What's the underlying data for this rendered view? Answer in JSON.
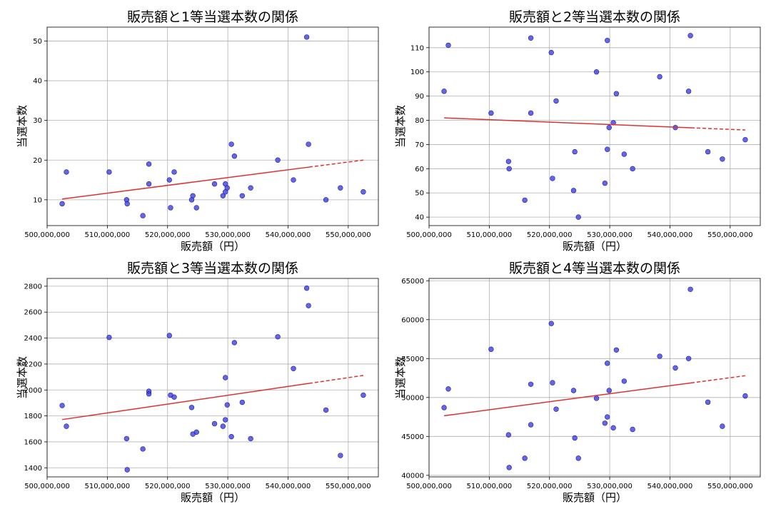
{
  "chart_data": [
    {
      "type": "scatter",
      "title": "販売額と1等当選本数の関係",
      "xlabel": "販売額（円）",
      "ylabel": "当選本数",
      "xlim": [
        500000000,
        555000000
      ],
      "ylim": [
        3.5,
        53.5
      ],
      "xticks": [
        500000000,
        510000000,
        520000000,
        530000000,
        540000000,
        550000000
      ],
      "xtick_labels": [
        "500,000,000",
        "510,000,000",
        "520,000,000",
        "530,000,000",
        "540,000,000",
        "550,000,000"
      ],
      "yticks": [
        10,
        20,
        30,
        40,
        50
      ],
      "ytick_labels": [
        "10",
        "20",
        "30",
        "40",
        "50"
      ],
      "grid": true,
      "point_color": "#3a3ae0",
      "trend_color": "#e03030",
      "trendline": {
        "x0": 502500000,
        "y0": 10.2,
        "x1": 552500000,
        "y1": 20.0,
        "dash_from": 543500000
      },
      "points": [
        [
          502500000,
          9
        ],
        [
          503200000,
          17
        ],
        [
          510300000,
          17
        ],
        [
          513200000,
          10
        ],
        [
          513300000,
          9
        ],
        [
          515900000,
          6
        ],
        [
          516900000,
          14
        ],
        [
          516900000,
          19
        ],
        [
          520300000,
          15
        ],
        [
          520500000,
          8
        ],
        [
          521100000,
          17
        ],
        [
          524000000,
          10
        ],
        [
          524200000,
          11
        ],
        [
          524800000,
          8
        ],
        [
          527800000,
          14
        ],
        [
          529200000,
          11
        ],
        [
          529600000,
          12
        ],
        [
          529600000,
          14
        ],
        [
          529900000,
          13
        ],
        [
          530600000,
          24
        ],
        [
          531100000,
          21
        ],
        [
          532400000,
          11
        ],
        [
          533800000,
          13
        ],
        [
          538300000,
          20
        ],
        [
          540900000,
          15
        ],
        [
          543100000,
          51
        ],
        [
          543400000,
          24
        ],
        [
          546300000,
          10
        ],
        [
          548700000,
          13
        ],
        [
          552500000,
          12
        ]
      ]
    },
    {
      "type": "scatter",
      "title": "販売額と2等当選本数の関係",
      "xlabel": "販売額（円）",
      "ylabel": "当選本数",
      "xlim": [
        500000000,
        555000000
      ],
      "ylim": [
        36.5,
        118.5
      ],
      "xticks": [
        500000000,
        510000000,
        520000000,
        530000000,
        540000000,
        550000000
      ],
      "xtick_labels": [
        "500,000,000",
        "510,000,000",
        "520,000,000",
        "530,000,000",
        "540,000,000",
        "550,000,000"
      ],
      "yticks": [
        40,
        50,
        60,
        70,
        80,
        90,
        100,
        110
      ],
      "ytick_labels": [
        "40",
        "50",
        "60",
        "70",
        "80",
        "90",
        "100",
        "110"
      ],
      "grid": true,
      "point_color": "#3a3ae0",
      "trend_color": "#e03030",
      "trendline": {
        "x0": 502500000,
        "y0": 81.0,
        "x1": 552500000,
        "y1": 76.0,
        "dash_from": 543500000
      },
      "points": [
        [
          502500000,
          92
        ],
        [
          503200000,
          111
        ],
        [
          510300000,
          83
        ],
        [
          513200000,
          63
        ],
        [
          513300000,
          60
        ],
        [
          515900000,
          47
        ],
        [
          516900000,
          83
        ],
        [
          516900000,
          114
        ],
        [
          520300000,
          108
        ],
        [
          520500000,
          56
        ],
        [
          521100000,
          88
        ],
        [
          524000000,
          51
        ],
        [
          524200000,
          67
        ],
        [
          524800000,
          40
        ],
        [
          527800000,
          100
        ],
        [
          529200000,
          54
        ],
        [
          529600000,
          68
        ],
        [
          529600000,
          113
        ],
        [
          529900000,
          77
        ],
        [
          530600000,
          79
        ],
        [
          531100000,
          91
        ],
        [
          532400000,
          66
        ],
        [
          533800000,
          60
        ],
        [
          538300000,
          98
        ],
        [
          540900000,
          77
        ],
        [
          543100000,
          92
        ],
        [
          543400000,
          115
        ],
        [
          546300000,
          67
        ],
        [
          548700000,
          64
        ],
        [
          552500000,
          72
        ]
      ]
    },
    {
      "type": "scatter",
      "title": "販売額と3等当選本数の関係",
      "xlabel": "販売額（円）",
      "ylabel": "当選本数",
      "xlim": [
        500000000,
        555000000
      ],
      "ylim": [
        1330,
        2860
      ],
      "xticks": [
        500000000,
        510000000,
        520000000,
        530000000,
        540000000,
        550000000
      ],
      "xtick_labels": [
        "500,000,000",
        "510,000,000",
        "520,000,000",
        "530,000,000",
        "540,000,000",
        "550,000,000"
      ],
      "yticks": [
        1400,
        1600,
        1800,
        2000,
        2200,
        2400,
        2600,
        2800
      ],
      "ytick_labels": [
        "1400",
        "1600",
        "1800",
        "2000",
        "2200",
        "2400",
        "2600",
        "2800"
      ],
      "grid": true,
      "point_color": "#3a3ae0",
      "trend_color": "#e03030",
      "trendline": {
        "x0": 502500000,
        "y0": 1772,
        "x1": 552500000,
        "y1": 2112,
        "dash_from": 543500000
      },
      "points": [
        [
          502500000,
          1880
        ],
        [
          503200000,
          1720
        ],
        [
          510300000,
          2405
        ],
        [
          513200000,
          1625
        ],
        [
          513300000,
          1385
        ],
        [
          515900000,
          1545
        ],
        [
          516900000,
          1990
        ],
        [
          516900000,
          1970
        ],
        [
          520300000,
          2420
        ],
        [
          520500000,
          1960
        ],
        [
          521100000,
          1945
        ],
        [
          524000000,
          1865
        ],
        [
          524200000,
          1660
        ],
        [
          524800000,
          1675
        ],
        [
          527800000,
          1740
        ],
        [
          529200000,
          1720
        ],
        [
          529600000,
          1770
        ],
        [
          529600000,
          2095
        ],
        [
          529900000,
          1885
        ],
        [
          530600000,
          1640
        ],
        [
          531100000,
          2365
        ],
        [
          532400000,
          1905
        ],
        [
          533800000,
          1625
        ],
        [
          538300000,
          2410
        ],
        [
          540900000,
          2165
        ],
        [
          543100000,
          2785
        ],
        [
          543400000,
          2650
        ],
        [
          546300000,
          1845
        ],
        [
          548700000,
          1495
        ],
        [
          552500000,
          1960
        ]
      ]
    },
    {
      "type": "scatter",
      "title": "販売額と4等当選本数の関係",
      "xlabel": "販売額（円）",
      "ylabel": "当選本数",
      "xlim": [
        500000000,
        555000000
      ],
      "ylim": [
        39800,
        65300
      ],
      "xticks": [
        500000000,
        510000000,
        520000000,
        530000000,
        540000000,
        550000000
      ],
      "xtick_labels": [
        "500,000,000",
        "510,000,000",
        "520,000,000",
        "530,000,000",
        "540,000,000",
        "550,000,000"
      ],
      "yticks": [
        40000,
        45000,
        50000,
        55000,
        60000,
        65000
      ],
      "ytick_labels": [
        "40000",
        "45000",
        "50000",
        "55000",
        "60000",
        "65000"
      ],
      "grid": true,
      "point_color": "#3a3ae0",
      "trend_color": "#e03030",
      "trendline": {
        "x0": 502500000,
        "y0": 47650,
        "x1": 552500000,
        "y1": 52800,
        "dash_from": 543500000
      },
      "points": [
        [
          502500000,
          48700
        ],
        [
          503200000,
          51100
        ],
        [
          510300000,
          56200
        ],
        [
          513200000,
          45200
        ],
        [
          513300000,
          41000
        ],
        [
          515900000,
          42200
        ],
        [
          516900000,
          46500
        ],
        [
          516900000,
          51700
        ],
        [
          520300000,
          59500
        ],
        [
          520500000,
          51900
        ],
        [
          521100000,
          48500
        ],
        [
          524000000,
          50900
        ],
        [
          524200000,
          44800
        ],
        [
          524800000,
          42200
        ],
        [
          527800000,
          49900
        ],
        [
          529200000,
          46700
        ],
        [
          529600000,
          47500
        ],
        [
          529600000,
          54400
        ],
        [
          529900000,
          50900
        ],
        [
          530600000,
          46100
        ],
        [
          531100000,
          56100
        ],
        [
          532400000,
          52100
        ],
        [
          533800000,
          45900
        ],
        [
          538300000,
          55300
        ],
        [
          540900000,
          53800
        ],
        [
          543100000,
          55000
        ],
        [
          543400000,
          63900
        ],
        [
          546300000,
          49400
        ],
        [
          548700000,
          46300
        ],
        [
          552500000,
          50200
        ]
      ]
    }
  ]
}
